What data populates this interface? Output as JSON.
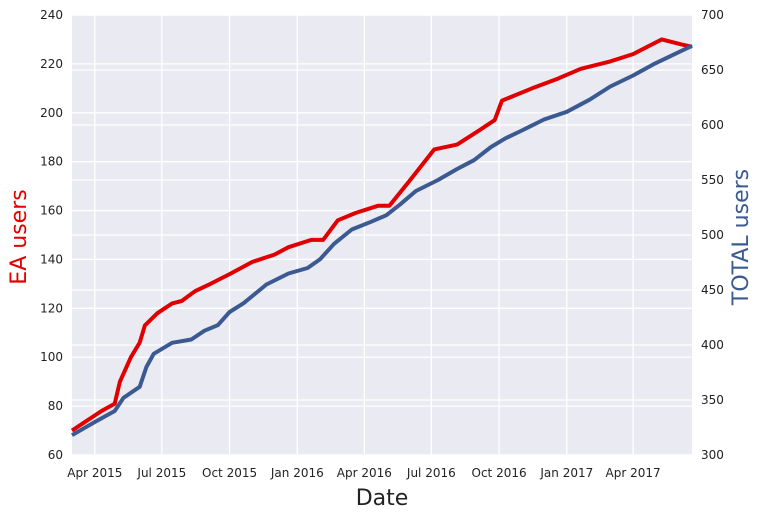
{
  "colors": {
    "ea": "#e00000",
    "total": "#3c5a92",
    "plot_background": "#eaeaf2",
    "grid": "#ffffff"
  },
  "chart_data": {
    "type": "line",
    "xlabel": "Date",
    "grid": true,
    "xlim": [
      "2015-03-01",
      "2017-06-20"
    ],
    "x_ticks": [
      {
        "date": "2015-04-01",
        "label": "Apr 2015"
      },
      {
        "date": "2015-07-01",
        "label": "Jul 2015"
      },
      {
        "date": "2015-10-01",
        "label": "Oct 2015"
      },
      {
        "date": "2016-01-01",
        "label": "Jan 2016"
      },
      {
        "date": "2016-04-01",
        "label": "Apr 2016"
      },
      {
        "date": "2016-07-01",
        "label": "Jul 2016"
      },
      {
        "date": "2016-10-01",
        "label": "Oct 2016"
      },
      {
        "date": "2017-01-01",
        "label": "Jan 2017"
      },
      {
        "date": "2017-04-01",
        "label": "Apr 2017"
      }
    ],
    "left_axis": {
      "label": "EA users",
      "ylim": [
        60,
        240
      ],
      "ticks": [
        "60",
        "80",
        "100",
        "120",
        "140",
        "160",
        "180",
        "200",
        "220",
        "240"
      ]
    },
    "right_axis": {
      "label": "TOTAL users",
      "ylim": [
        300,
        700
      ],
      "ticks": [
        "300",
        "350",
        "400",
        "450",
        "500",
        "550",
        "600",
        "650",
        "700"
      ]
    },
    "series": [
      {
        "axis": "left",
        "color": "#e00000",
        "points": [
          [
            "2015-03-01",
            70
          ],
          [
            "2015-04-10",
            78
          ],
          [
            "2015-04-28",
            81
          ],
          [
            "2015-05-05",
            90
          ],
          [
            "2015-05-20",
            100
          ],
          [
            "2015-06-01",
            106
          ],
          [
            "2015-06-08",
            113
          ],
          [
            "2015-06-25",
            118
          ],
          [
            "2015-07-15",
            122
          ],
          [
            "2015-07-28",
            123
          ],
          [
            "2015-08-15",
            127
          ],
          [
            "2015-09-05",
            130
          ],
          [
            "2015-10-01",
            134
          ],
          [
            "2015-11-01",
            139
          ],
          [
            "2015-12-01",
            142
          ],
          [
            "2015-12-20",
            145
          ],
          [
            "2016-01-20",
            148
          ],
          [
            "2016-02-05",
            148
          ],
          [
            "2016-02-25",
            156
          ],
          [
            "2016-03-20",
            159
          ],
          [
            "2016-04-20",
            162
          ],
          [
            "2016-05-05",
            162
          ],
          [
            "2016-06-01",
            172
          ],
          [
            "2016-07-05",
            185
          ],
          [
            "2016-08-05",
            187
          ],
          [
            "2016-09-05",
            193
          ],
          [
            "2016-09-25",
            197
          ],
          [
            "2016-10-05",
            205
          ],
          [
            "2016-11-15",
            210
          ],
          [
            "2016-12-20",
            214
          ],
          [
            "2017-01-20",
            218
          ],
          [
            "2017-03-01",
            221
          ],
          [
            "2017-04-01",
            224
          ],
          [
            "2017-05-10",
            230
          ],
          [
            "2017-06-05",
            228
          ],
          [
            "2017-06-20",
            227
          ]
        ]
      },
      {
        "axis": "right",
        "color": "#3c5a92",
        "points": [
          [
            "2015-03-01",
            318
          ],
          [
            "2015-04-01",
            330
          ],
          [
            "2015-04-28",
            340
          ],
          [
            "2015-05-10",
            352
          ],
          [
            "2015-06-01",
            362
          ],
          [
            "2015-06-10",
            380
          ],
          [
            "2015-06-20",
            392
          ],
          [
            "2015-07-15",
            402
          ],
          [
            "2015-08-10",
            405
          ],
          [
            "2015-08-28",
            413
          ],
          [
            "2015-09-15",
            418
          ],
          [
            "2015-10-01",
            430
          ],
          [
            "2015-10-20",
            438
          ],
          [
            "2015-11-20",
            455
          ],
          [
            "2015-12-20",
            465
          ],
          [
            "2016-01-15",
            470
          ],
          [
            "2016-02-01",
            478
          ],
          [
            "2016-02-20",
            492
          ],
          [
            "2016-03-15",
            505
          ],
          [
            "2016-04-10",
            512
          ],
          [
            "2016-05-01",
            518
          ],
          [
            "2016-05-20",
            528
          ],
          [
            "2016-06-10",
            540
          ],
          [
            "2016-07-10",
            550
          ],
          [
            "2016-08-05",
            560
          ],
          [
            "2016-08-28",
            568
          ],
          [
            "2016-09-20",
            580
          ],
          [
            "2016-10-10",
            588
          ],
          [
            "2016-11-01",
            595
          ],
          [
            "2016-12-01",
            605
          ],
          [
            "2017-01-01",
            612
          ],
          [
            "2017-02-01",
            623
          ],
          [
            "2017-03-01",
            635
          ],
          [
            "2017-04-01",
            645
          ],
          [
            "2017-05-01",
            656
          ],
          [
            "2017-06-20",
            672
          ]
        ]
      }
    ]
  }
}
